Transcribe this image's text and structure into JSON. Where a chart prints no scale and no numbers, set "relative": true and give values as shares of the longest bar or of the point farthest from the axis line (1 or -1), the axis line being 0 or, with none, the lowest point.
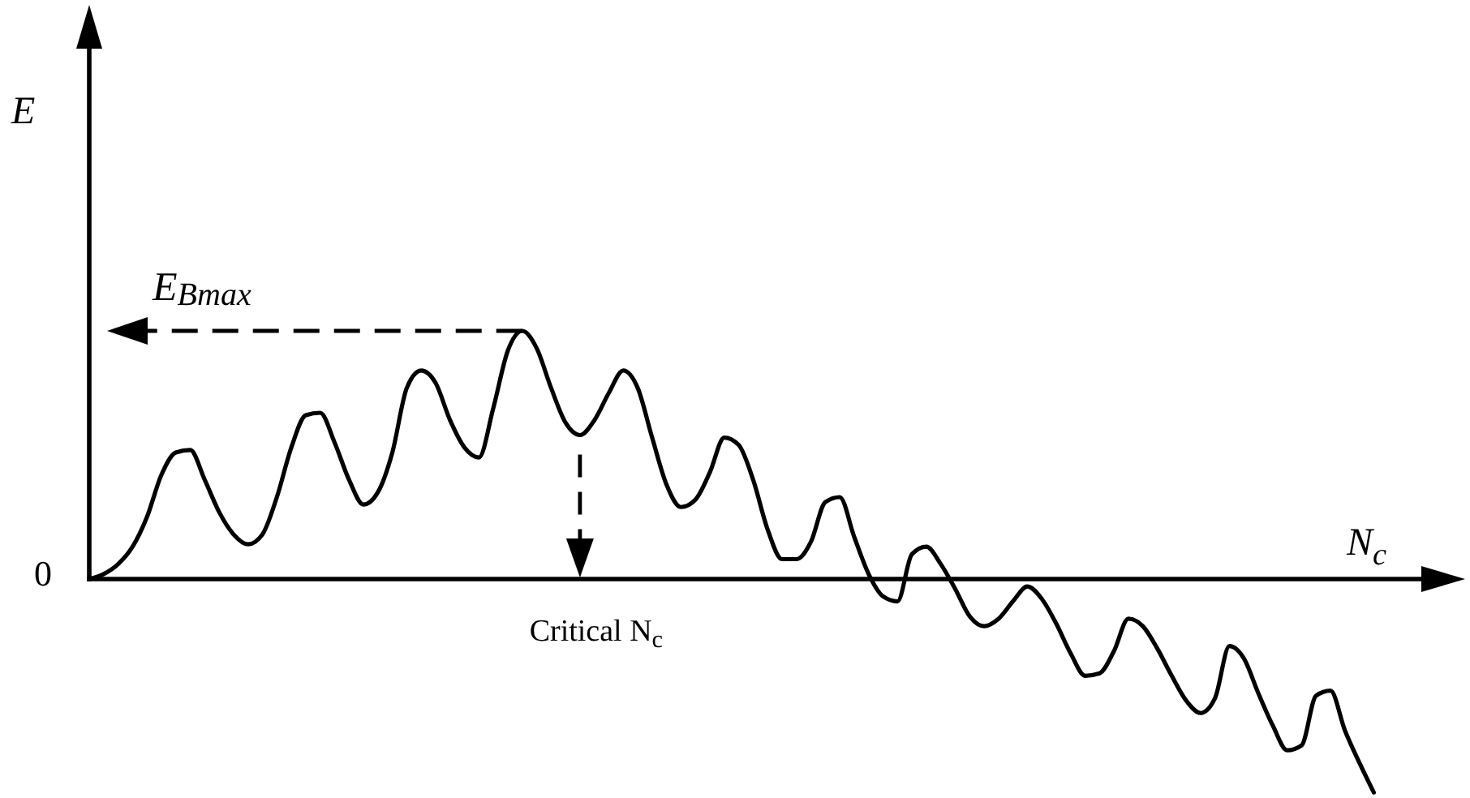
{
  "chart_data": {
    "type": "line",
    "relative": true,
    "xlabel": "N$_{c}$",
    "line_style": "solid",
    "categories": [
      null,
      null,
      null,
      null,
      null,
      null,
      null,
      null,
      null,
      null,
      null,
      null,
      null,
      null,
      null,
      null,
      null,
      null,
      null,
      null,
      null,
      null,
      null,
      null,
      null,
      null,
      null,
      null,
      null,
      null,
      null,
      null,
      null,
      null,
      null,
      null,
      null,
      null,
      null,
      null,
      null,
      null,
      null,
      null,
      null,
      null,
      null,
      null,
      null,
      null,
      null,
      null,
      null,
      null,
      null,
      null,
      null,
      null,
      null,
      null,
      null,
      null,
      null,
      null,
      null,
      null,
      null,
      null,
      null,
      null,
      null,
      null,
      null,
      null,
      null,
      null,
      null,
      null,
      null,
      null,
      null,
      null,
      null,
      null,
      null,
      null,
      null,
      null,
      null,
      null
    ],
    "series": [
      {
        "color": "#000000",
        "values": [
          0,
          0.02,
          0.06,
          0.13,
          0.25,
          0.42,
          0.51,
          0.52,
          0.4,
          0.27,
          0.18,
          0.14,
          0.18,
          0.33,
          0.53,
          0.66,
          0.67,
          0.55,
          0.4,
          0.3,
          0.35,
          0.51,
          0.77,
          0.84,
          0.79,
          0.64,
          0.53,
          0.49,
          0.69,
          0.92,
          1,
          0.93,
          0.77,
          0.63,
          0.58,
          0.64,
          0.75,
          0.84,
          0.77,
          0.57,
          0.38,
          0.29,
          0.32,
          0.43,
          0.57,
          0.54,
          0.4,
          0.2,
          0.08,
          0.08,
          0.15,
          0.31,
          0.33,
          0.17,
          0.02,
          -0.07,
          -0.09,
          0.1,
          0.13,
          0.06,
          -0.04,
          -0.15,
          -0.19,
          -0.16,
          -0.09,
          -0.03,
          -0.08,
          -0.18,
          -0.3,
          -0.39,
          -0.38,
          -0.29,
          -0.16,
          -0.19,
          -0.28,
          -0.39,
          -0.49,
          -0.54,
          -0.48,
          -0.27,
          -0.32,
          -0.46,
          -0.59,
          -0.69,
          -0.67,
          -0.47,
          -0.45,
          -0.61,
          -0.74,
          -0.86
        ]
      }
    ],
    "annotations": [
      "E",
      "E$_{Bmax}$",
      "0",
      "Critical N$_{c}$"
    ]
  }
}
